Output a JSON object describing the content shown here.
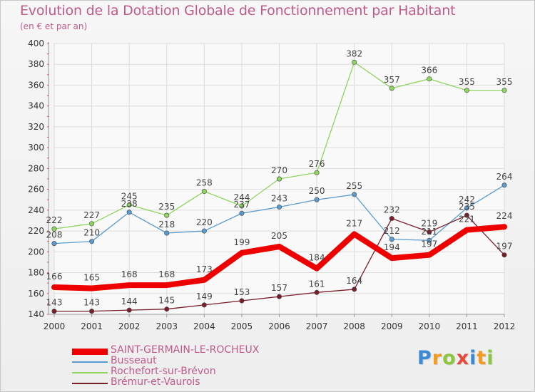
{
  "header": {
    "title": "Evolution de la Dotation Globale de Fonctionnement par Habitant",
    "subtitle": "(en € et par an)"
  },
  "brand": {
    "letters": [
      "P",
      "r",
      "o",
      "x",
      "i",
      "t",
      "i"
    ],
    "colors": [
      "#3a8ad6",
      "#f39a1e",
      "#8cc63f",
      "#e8483c",
      "#3a8ad6",
      "#f39a1e",
      "#8cc63f"
    ]
  },
  "chart_data": {
    "type": "line",
    "title": "Evolution de la Dotation Globale de Fonctionnement par Habitant",
    "subtitle": "(en € et par an)",
    "x": [
      "2000",
      "2001",
      "2002",
      "2003",
      "2004",
      "2005",
      "2006",
      "2007",
      "2008",
      "2009",
      "2010",
      "2011",
      "2012"
    ],
    "ylim": [
      140,
      400
    ],
    "yticks": [
      140,
      160,
      180,
      200,
      220,
      240,
      260,
      280,
      300,
      320,
      340,
      360,
      380,
      400
    ],
    "grid": true,
    "legend_position": "bottom-left",
    "series": [
      {
        "name": "SAINT-GERMAIN-LE-ROCHEUX",
        "color": "#ee0000",
        "emphasis": true,
        "values": [
          166,
          165,
          168,
          168,
          173,
          199,
          205,
          184,
          217,
          194,
          197,
          221,
          224
        ],
        "labels": [
          "166",
          "165",
          "168",
          "168",
          "173",
          "199",
          "205",
          "184",
          "217",
          "194",
          "197",
          "221",
          "224"
        ]
      },
      {
        "name": "Busseaut",
        "color": "#5b9bd0",
        "emphasis": false,
        "values": [
          208,
          210,
          238,
          218,
          220,
          237,
          243,
          250,
          255,
          212,
          211,
          242,
          264
        ],
        "labels": [
          "208",
          "210",
          "238",
          "218",
          "220",
          "237",
          "243",
          "250",
          "255",
          "212",
          "211",
          "242",
          "264"
        ]
      },
      {
        "name": "Rochefort-sur-Brévon",
        "color": "#8ed65e",
        "emphasis": false,
        "values": [
          222,
          227,
          245,
          235,
          258,
          244,
          270,
          276,
          382,
          357,
          366,
          355,
          355
        ],
        "labels": [
          "222",
          "227",
          "245",
          "235",
          "258",
          "244",
          "270",
          "276",
          "382",
          "357",
          "366",
          "355",
          "355"
        ]
      },
      {
        "name": "Brémur-et-Vaurois",
        "color": "#7a1e2a",
        "emphasis": false,
        "values": [
          143,
          143,
          144,
          145,
          149,
          153,
          157,
          161,
          164,
          232,
          219,
          235,
          197
        ],
        "labels": [
          "143",
          "143",
          "144",
          "145",
          "149",
          "153",
          "157",
          "161",
          "164",
          "232",
          "219",
          "235",
          "197"
        ]
      }
    ]
  }
}
